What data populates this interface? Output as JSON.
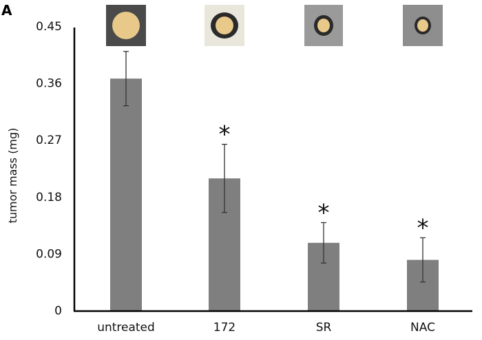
{
  "panel_label": "A",
  "colors": {
    "bar": "#7f7f7f",
    "error": "#333333",
    "axis": "#000000"
  },
  "chart_data": {
    "type": "bar",
    "title": "",
    "xlabel": "",
    "ylabel": "tumor mass (mg)",
    "ylim": [
      0,
      0.45
    ],
    "yticks": [
      "0",
      "0.09",
      "0.18",
      "0.27",
      "0.36",
      "0.45"
    ],
    "ytick_values": [
      0,
      0.09,
      0.18,
      0.27,
      0.36,
      0.45
    ],
    "categories": [
      "untreated",
      "172",
      "SR",
      "NAC"
    ],
    "values": [
      0.367,
      0.209,
      0.107,
      0.08
    ],
    "error": [
      0.043,
      0.054,
      0.032,
      0.035
    ],
    "significance": [
      "",
      "*",
      "*",
      "*"
    ],
    "grid": false,
    "images_above_bars": [
      "tumor-photo-untreated",
      "tumor-photo-172",
      "tumor-photo-SR",
      "tumor-photo-NAC"
    ]
  }
}
